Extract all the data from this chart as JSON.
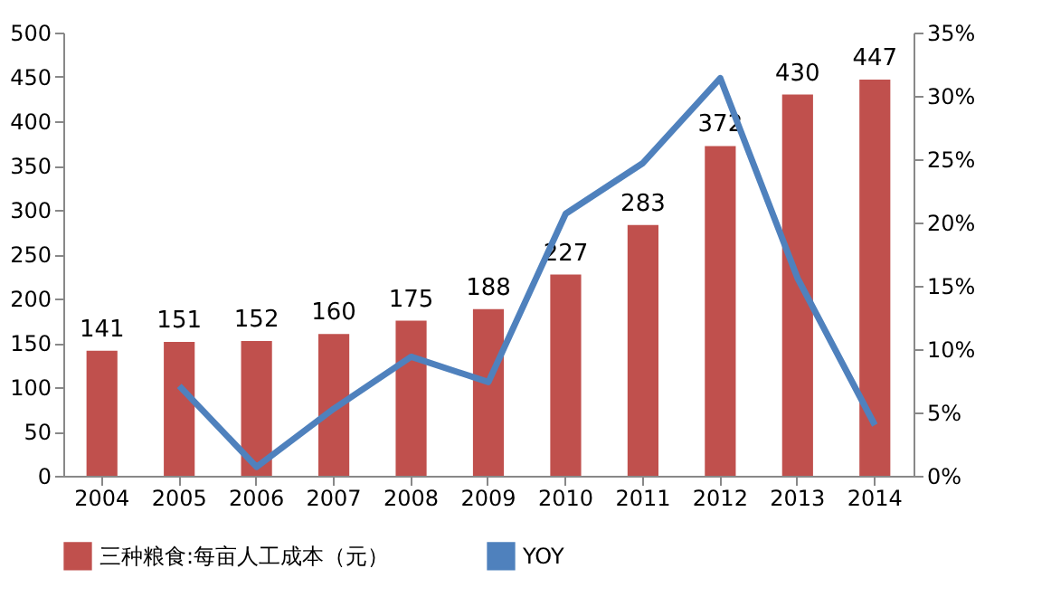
{
  "chart_data": {
    "type": "bar",
    "categories": [
      "2004",
      "2005",
      "2006",
      "2007",
      "2008",
      "2009",
      "2010",
      "2011",
      "2012",
      "2013",
      "2014"
    ],
    "series": [
      {
        "name": "三种粮食:每亩人工成本（元）",
        "color": "#c0504d",
        "values": [
          141,
          151,
          152,
          160,
          175,
          188,
          227,
          283,
          372,
          430,
          447
        ],
        "value_labels": [
          "141",
          "151",
          "152",
          "160",
          "175",
          "188",
          "227",
          "283",
          "372",
          "430",
          "447"
        ]
      },
      {
        "name": "YOY",
        "type": "line",
        "axis": "y2",
        "color": "#4f81bd",
        "values": [
          null,
          7.1,
          0.7,
          5.3,
          9.4,
          7.4,
          20.7,
          24.7,
          31.4,
          15.6,
          4.0
        ]
      }
    ],
    "ylim": [
      0,
      500
    ],
    "yticks": [
      0,
      50,
      100,
      150,
      200,
      250,
      300,
      350,
      400,
      450,
      500
    ],
    "y2lim": [
      0,
      35
    ],
    "y2ticks": [
      {
        "value": 0,
        "label": "0%"
      },
      {
        "value": 5,
        "label": "5%"
      },
      {
        "value": 10,
        "label": "10%"
      },
      {
        "value": 15,
        "label": "15%"
      },
      {
        "value": 20,
        "label": "20%"
      },
      {
        "value": 25,
        "label": "25%"
      },
      {
        "value": 30,
        "label": "30%"
      },
      {
        "value": 35,
        "label": "35%"
      }
    ],
    "legend": "bottom",
    "grid": false
  }
}
